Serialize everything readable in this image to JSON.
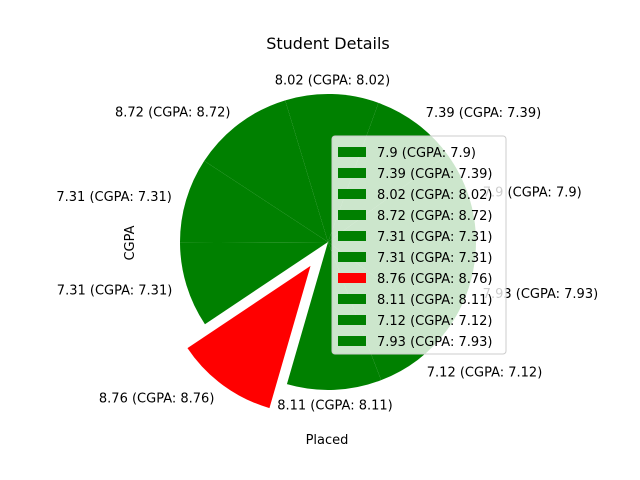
{
  "chart_data": {
    "type": "pie",
    "title": "Student Details",
    "xlabel": "Placed",
    "ylabel": "CGPA",
    "legend_position": "right",
    "slices": [
      {
        "label": "7.9 (CGPA: 7.9)",
        "value": 7.9,
        "color": "#008000",
        "exploded": false
      },
      {
        "label": "7.39 (CGPA: 7.39)",
        "value": 7.39,
        "color": "#008000",
        "exploded": false
      },
      {
        "label": "8.02 (CGPA: 8.02)",
        "value": 8.02,
        "color": "#008000",
        "exploded": false
      },
      {
        "label": "8.72 (CGPA: 8.72)",
        "value": 8.72,
        "color": "#008000",
        "exploded": false
      },
      {
        "label": "7.31 (CGPA: 7.31)",
        "value": 7.31,
        "color": "#008000",
        "exploded": false
      },
      {
        "label": "7.31 (CGPA: 7.31)",
        "value": 7.31,
        "color": "#008000",
        "exploded": false
      },
      {
        "label": "8.76 (CGPA: 8.76)",
        "value": 8.76,
        "color": "#ff0000",
        "exploded": true
      },
      {
        "label": "8.11 (CGPA: 8.11)",
        "value": 8.11,
        "color": "#008000",
        "exploded": false
      },
      {
        "label": "7.12 (CGPA: 7.12)",
        "value": 7.12,
        "color": "#008000",
        "exploded": false
      },
      {
        "label": "7.93 (CGPA: 7.93)",
        "value": 7.93,
        "color": "#008000",
        "exploded": false
      }
    ]
  }
}
